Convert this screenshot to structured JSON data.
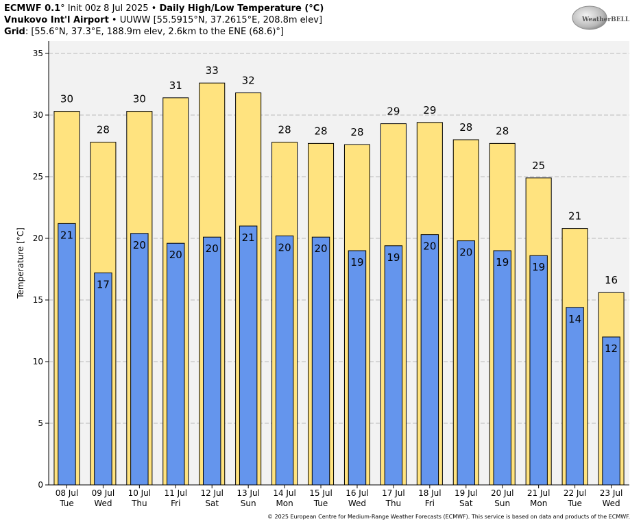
{
  "header": {
    "model": "ECMWF 0.1",
    "init": "° Init 00z 8 Jul 2025",
    "sep": " • ",
    "product": "Daily High/Low Temperature (°C)",
    "station_name": "Vnukovo Int'l Airport",
    "station_detail": "UUWW [55.5915°N, 37.2615°E, 208.8m elev]",
    "grid_label": "Grid",
    "grid_detail": ": [55.6°N, 37.3°E, 188.9m elev, 2.6km to the ENE (68.6)°]"
  },
  "logo": {
    "brand_text": "WeatherBELL",
    "icon": "weatherbell-logo"
  },
  "footer": {
    "copyright": "© 2025 European Centre for Medium-Range Weather Forecasts (ECMWF). This service is based on data and products of the ECMWF."
  },
  "colors": {
    "high_bar": "#FFE37F",
    "low_bar": "#6495ED",
    "plot_background": "#F2F2F2",
    "grid": "#BBBBBB"
  },
  "chart_data": {
    "type": "bar",
    "title": "Daily High/Low Temperature (°C)",
    "ylabel": "Temperature [°C]",
    "xlabel": "",
    "ylim": [
      0,
      36
    ],
    "yticks": [
      0,
      5,
      10,
      15,
      20,
      25,
      30,
      35
    ],
    "grid": true,
    "categories": [
      {
        "date": "08 Jul",
        "day": "Tue"
      },
      {
        "date": "09 Jul",
        "day": "Wed"
      },
      {
        "date": "10 Jul",
        "day": "Thu"
      },
      {
        "date": "11 Jul",
        "day": "Fri"
      },
      {
        "date": "12 Jul",
        "day": "Sat"
      },
      {
        "date": "13 Jul",
        "day": "Sun"
      },
      {
        "date": "14 Jul",
        "day": "Mon"
      },
      {
        "date": "15 Jul",
        "day": "Tue"
      },
      {
        "date": "16 Jul",
        "day": "Wed"
      },
      {
        "date": "17 Jul",
        "day": "Thu"
      },
      {
        "date": "18 Jul",
        "day": "Fri"
      },
      {
        "date": "19 Jul",
        "day": "Sat"
      },
      {
        "date": "20 Jul",
        "day": "Sun"
      },
      {
        "date": "21 Jul",
        "day": "Mon"
      },
      {
        "date": "22 Jul",
        "day": "Tue"
      },
      {
        "date": "23 Jul",
        "day": "Wed"
      }
    ],
    "series": [
      {
        "key": "high",
        "values": [
          30.3,
          27.8,
          30.3,
          31.4,
          32.6,
          31.8,
          27.8,
          27.7,
          27.6,
          29.3,
          29.4,
          28.0,
          27.7,
          24.9,
          20.8,
          15.6
        ],
        "labels": [
          "30",
          "28",
          "30",
          "31",
          "33",
          "32",
          "28",
          "28",
          "28",
          "29",
          "29",
          "28",
          "28",
          "25",
          "21",
          "16"
        ]
      },
      {
        "key": "low",
        "values": [
          21.2,
          17.2,
          20.4,
          19.6,
          20.1,
          21.0,
          20.2,
          20.1,
          19.0,
          19.4,
          20.3,
          19.8,
          19.0,
          18.6,
          14.4,
          12.0
        ],
        "labels": [
          "21",
          "17",
          "20",
          "20",
          "20",
          "21",
          "20",
          "20",
          "19",
          "19",
          "20",
          "20",
          "19",
          "19",
          "14",
          "12"
        ]
      }
    ]
  }
}
